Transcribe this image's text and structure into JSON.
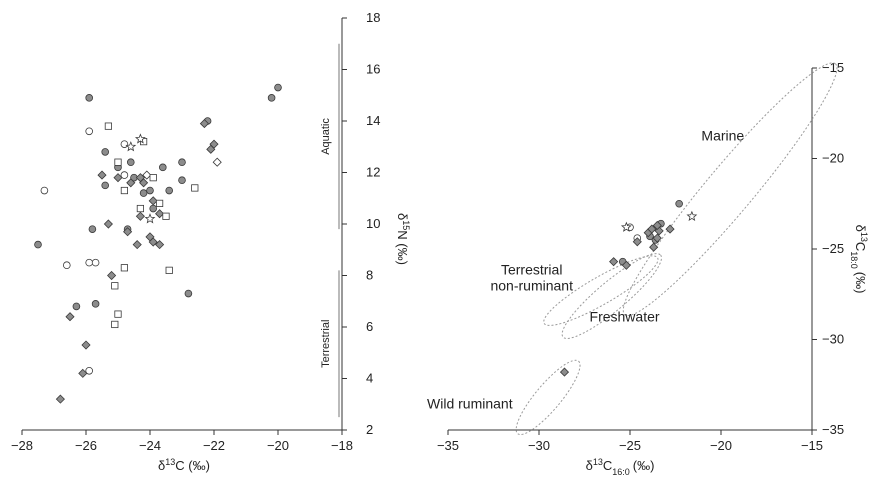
{
  "chart_data": [
    {
      "type": "scatter",
      "xlabel_main": "δ",
      "xlabel_sup": "13",
      "xlabel_rest": "C (‰)",
      "ylabel_main": "δ",
      "ylabel_sup": "15",
      "ylabel_rest": "N (‰)",
      "xlim": [
        -28,
        -18
      ],
      "ylim": [
        2,
        18
      ],
      "x_ticks": [
        -28,
        -26,
        -24,
        -22,
        -20,
        -18
      ],
      "y_ticks": [
        2,
        4,
        6,
        8,
        10,
        12,
        14,
        16,
        18
      ],
      "x_tick_labels": [
        "−28",
        "−26",
        "−24",
        "−22",
        "−20",
        "−18"
      ],
      "y_tick_labels": [
        "2",
        "4",
        "6",
        "8",
        "10",
        "12",
        "14",
        "16",
        "18"
      ],
      "regions": [
        {
          "label": "Aquatic",
          "y_range": [
            9.8,
            17.0
          ]
        },
        {
          "label": "Terrestrial",
          "y_range": [
            2.5,
            8.2
          ]
        }
      ],
      "series": [
        {
          "marker": "circle-filled",
          "points": [
            [
              -25.9,
              14.9
            ],
            [
              -20.0,
              15.3
            ],
            [
              -20.2,
              14.9
            ],
            [
              -22.2,
              14.0
            ],
            [
              -27.5,
              9.2
            ],
            [
              -25.4,
              12.8
            ],
            [
              -25.0,
              12.2
            ],
            [
              -24.6,
              12.4
            ],
            [
              -24.2,
              11.2
            ],
            [
              -24.0,
              11.3
            ],
            [
              -23.6,
              12.2
            ],
            [
              -23.4,
              11.3
            ],
            [
              -23.0,
              12.4
            ],
            [
              -23.9,
              10.6
            ],
            [
              -25.8,
              9.8
            ],
            [
              -24.7,
              9.8
            ],
            [
              -25.4,
              11.5
            ],
            [
              -22.8,
              7.3
            ],
            [
              -26.3,
              6.8
            ],
            [
              -25.7,
              6.9
            ],
            [
              -24.5,
              11.8
            ],
            [
              -23.0,
              11.7
            ]
          ]
        },
        {
          "marker": "circle-open",
          "points": [
            [
              -27.3,
              11.3
            ],
            [
              -25.9,
              13.6
            ],
            [
              -24.8,
              13.1
            ],
            [
              -26.6,
              8.4
            ],
            [
              -25.9,
              8.5
            ],
            [
              -25.7,
              8.5
            ],
            [
              -25.9,
              4.3
            ],
            [
              -24.8,
              11.9
            ]
          ]
        },
        {
          "marker": "diamond-filled",
          "points": [
            [
              -22.3,
              13.9
            ],
            [
              -22.0,
              13.1
            ],
            [
              -22.1,
              12.9
            ],
            [
              -25.5,
              11.9
            ],
            [
              -25.0,
              11.8
            ],
            [
              -24.3,
              11.8
            ],
            [
              -24.6,
              11.6
            ],
            [
              -24.2,
              11.6
            ],
            [
              -23.9,
              10.9
            ],
            [
              -24.3,
              10.3
            ],
            [
              -23.7,
              10.4
            ],
            [
              -24.7,
              9.7
            ],
            [
              -24.0,
              9.5
            ],
            [
              -23.7,
              9.2
            ],
            [
              -24.4,
              9.2
            ],
            [
              -23.9,
              9.3
            ],
            [
              -25.3,
              10.0
            ],
            [
              -25.2,
              8.0
            ],
            [
              -26.0,
              5.3
            ],
            [
              -26.1,
              4.2
            ],
            [
              -26.8,
              3.2
            ],
            [
              -26.5,
              6.4
            ]
          ]
        },
        {
          "marker": "diamond-open",
          "points": [
            [
              -21.9,
              12.4
            ],
            [
              -24.1,
              11.9
            ]
          ]
        },
        {
          "marker": "square-open",
          "points": [
            [
              -25.3,
              13.8
            ],
            [
              -24.2,
              13.2
            ],
            [
              -25.0,
              12.4
            ],
            [
              -24.8,
              11.3
            ],
            [
              -24.3,
              10.6
            ],
            [
              -23.9,
              11.8
            ],
            [
              -23.7,
              10.8
            ],
            [
              -23.5,
              10.3
            ],
            [
              -22.6,
              11.4
            ],
            [
              -23.4,
              8.2
            ],
            [
              -24.8,
              8.3
            ],
            [
              -25.1,
              7.6
            ],
            [
              -25.1,
              6.1
            ],
            [
              -25.0,
              6.5
            ]
          ]
        },
        {
          "marker": "star-open",
          "points": [
            [
              -24.3,
              13.3
            ],
            [
              -24.6,
              13.0
            ],
            [
              -24.0,
              10.2
            ]
          ]
        }
      ]
    },
    {
      "type": "scatter",
      "xlabel_main": "δ",
      "xlabel_sup": "13",
      "xlabel_rest": "C",
      "xlabel_sub": "16:0",
      "xlabel_unit": "(‰)",
      "ylabel_main": "δ",
      "ylabel_sup": "13",
      "ylabel_rest": "C",
      "ylabel_sub": "18:0",
      "ylabel_unit": "(‰)",
      "xlim": [
        -35,
        -15
      ],
      "ylim": [
        -35,
        -15
      ],
      "x_ticks": [
        -35,
        -30,
        -25,
        -20,
        -15
      ],
      "y_ticks": [
        -35,
        -30,
        -25,
        -20,
        -15
      ],
      "x_tick_labels": [
        "−35",
        "−30",
        "−25",
        "−20",
        "−15"
      ],
      "y_tick_labels": [
        "−35",
        "−30",
        "−25",
        "−20",
        "−15"
      ],
      "ellipses": [
        {
          "label": "Marine",
          "cx": -19.5,
          "cy": -21.7,
          "rx": 9.0,
          "ry": 1.3,
          "angle_deg": 50,
          "label_x": -19.9,
          "label_y": -19.0,
          "anchor": "middle"
        },
        {
          "label_lines": [
            "Terrestrial",
            "non-ruminant"
          ],
          "cx": -26.6,
          "cy": -27.3,
          "rx": 3.6,
          "ry": 0.75,
          "angle_deg": 30,
          "label_x": -30.4,
          "label_y": -26.4,
          "anchor": "middle"
        },
        {
          "label": "Freshwater",
          "cx": -26.0,
          "cy": -27.6,
          "rx": 3.5,
          "ry": 0.8,
          "angle_deg": 40,
          "label_x": -25.3,
          "label_y": -29.0,
          "anchor": "middle"
        },
        {
          "label": "Wild ruminant",
          "cx": -29.5,
          "cy": -33.2,
          "rx": 2.6,
          "ry": 0.7,
          "angle_deg": 50,
          "label_x": -33.8,
          "label_y": -33.8,
          "anchor": "middle"
        }
      ],
      "series": [
        {
          "marker": "circle-filled",
          "points": [
            [
              -23.9,
              -24.3
            ],
            [
              -23.6,
              -24.5
            ],
            [
              -23.3,
              -23.6
            ],
            [
              -22.3,
              -22.5
            ],
            [
              -25.4,
              -25.7
            ]
          ]
        },
        {
          "marker": "circle-open",
          "points": [
            [
              -25.0,
              -23.8
            ],
            [
              -24.6,
              -24.4
            ]
          ]
        },
        {
          "marker": "diamond-filled",
          "points": [
            [
              -28.6,
              -31.8
            ],
            [
              -25.9,
              -25.7
            ],
            [
              -25.2,
              -25.9
            ],
            [
              -24.6,
              -24.6
            ],
            [
              -24.0,
              -24.1
            ],
            [
              -23.8,
              -23.9
            ],
            [
              -23.5,
              -24.4
            ],
            [
              -23.4,
              -24.0
            ],
            [
              -23.7,
              -24.9
            ],
            [
              -22.8,
              -23.9
            ],
            [
              -23.5,
              -23.7
            ]
          ]
        },
        {
          "marker": "star-open",
          "points": [
            [
              -25.2,
              -23.8
            ],
            [
              -21.6,
              -23.2
            ]
          ]
        }
      ]
    }
  ]
}
